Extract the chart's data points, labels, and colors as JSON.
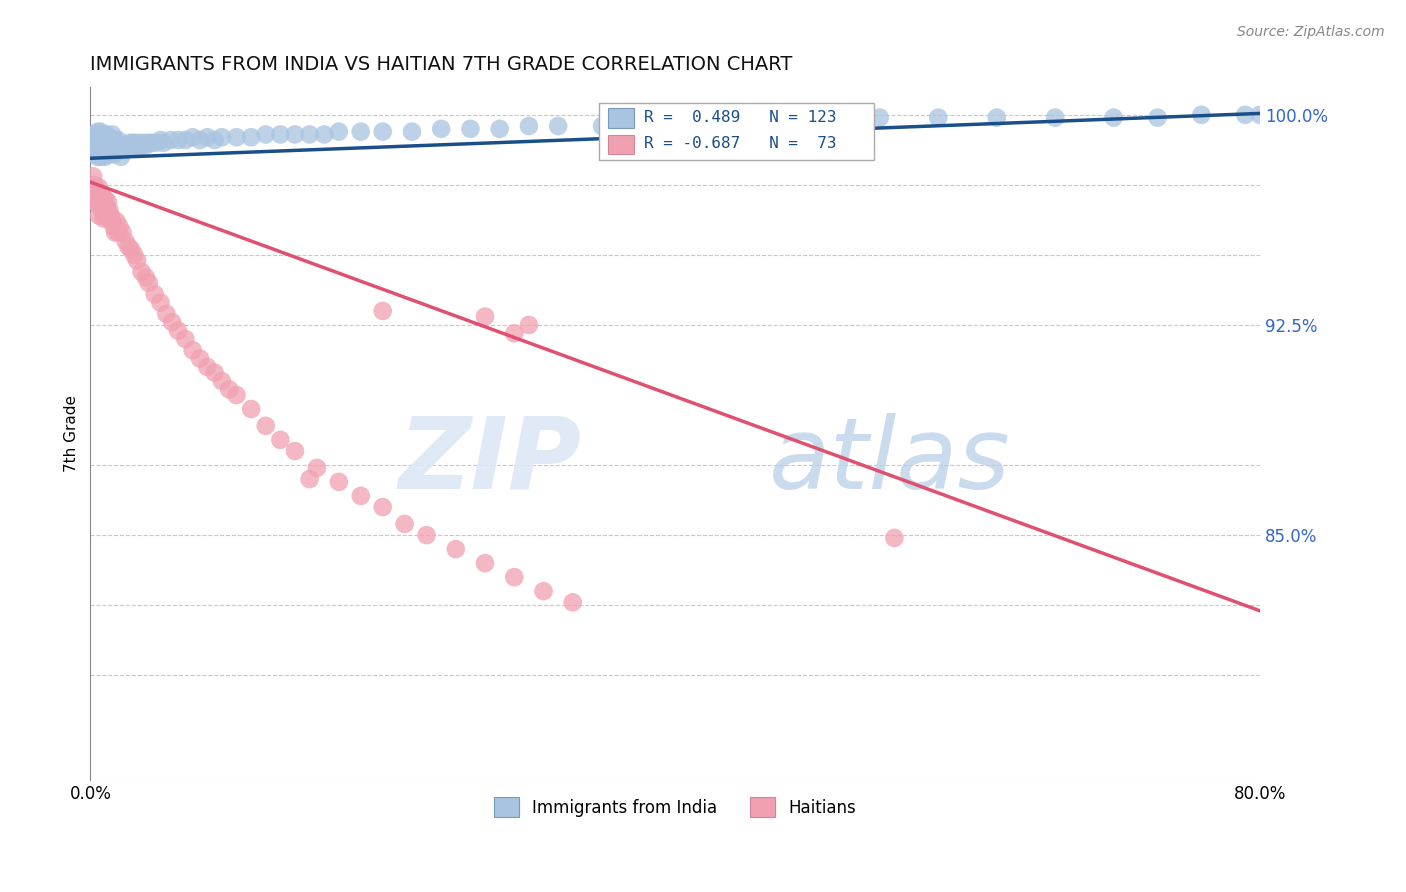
{
  "title": "IMMIGRANTS FROM INDIA VS HAITIAN 7TH GRADE CORRELATION CHART",
  "source": "Source: ZipAtlas.com",
  "ylabel_label": "7th Grade",
  "x_min": 0.0,
  "x_max": 0.8,
  "y_min": 0.7625,
  "y_max": 1.01,
  "india_R": 0.489,
  "india_N": 123,
  "haiti_R": -0.687,
  "haiti_N": 73,
  "india_color": "#a8c4e0",
  "india_line_color": "#1a4f8a",
  "haiti_color": "#f0a0b0",
  "haiti_line_color": "#e05070",
  "background_color": "#ffffff",
  "grid_color": "#c8c8c8",
  "axis_label_color": "#3366cc",
  "title_color": "#111111",
  "india_line_x0": 0.0,
  "india_line_y0": 0.9845,
  "india_line_x1": 0.8,
  "india_line_y1": 1.0005,
  "haiti_line_x0": 0.0,
  "haiti_line_y0": 0.976,
  "haiti_line_x1": 0.8,
  "haiti_line_y1": 0.823,
  "y_grid_lines": [
    0.7625,
    0.8,
    0.825,
    0.85,
    0.875,
    0.925,
    0.95,
    0.975,
    1.0
  ],
  "y_right_ticks": [
    0.7625,
    0.8,
    0.825,
    0.85,
    0.875,
    0.925,
    0.95,
    0.975,
    1.0
  ],
  "y_right_labels": [
    "",
    "",
    "",
    "85.0%",
    "",
    "92.5%",
    "",
    "",
    "100.0%"
  ],
  "india_x": [
    0.002,
    0.002,
    0.003,
    0.003,
    0.003,
    0.004,
    0.004,
    0.004,
    0.005,
    0.005,
    0.005,
    0.005,
    0.006,
    0.006,
    0.006,
    0.007,
    0.007,
    0.007,
    0.007,
    0.008,
    0.008,
    0.008,
    0.009,
    0.009,
    0.009,
    0.01,
    0.01,
    0.01,
    0.011,
    0.011,
    0.011,
    0.012,
    0.012,
    0.013,
    0.013,
    0.014,
    0.014,
    0.015,
    0.015,
    0.015,
    0.016,
    0.016,
    0.017,
    0.017,
    0.018,
    0.018,
    0.019,
    0.019,
    0.02,
    0.021,
    0.021,
    0.022,
    0.023,
    0.024,
    0.025,
    0.026,
    0.027,
    0.028,
    0.029,
    0.03,
    0.031,
    0.032,
    0.034,
    0.035,
    0.037,
    0.038,
    0.04,
    0.042,
    0.045,
    0.048,
    0.05,
    0.055,
    0.06,
    0.065,
    0.07,
    0.075,
    0.08,
    0.085,
    0.09,
    0.1,
    0.11,
    0.12,
    0.13,
    0.14,
    0.15,
    0.16,
    0.17,
    0.185,
    0.2,
    0.22,
    0.24,
    0.26,
    0.28,
    0.3,
    0.32,
    0.35,
    0.38,
    0.41,
    0.44,
    0.47,
    0.5,
    0.54,
    0.58,
    0.62,
    0.66,
    0.7,
    0.73,
    0.76,
    0.79,
    0.8,
    0.81,
    0.82,
    0.83
  ],
  "india_y": [
    0.987,
    0.99,
    0.986,
    0.99,
    0.993,
    0.987,
    0.99,
    0.993,
    0.985,
    0.988,
    0.991,
    0.994,
    0.986,
    0.989,
    0.992,
    0.985,
    0.988,
    0.991,
    0.994,
    0.986,
    0.989,
    0.992,
    0.986,
    0.989,
    0.993,
    0.985,
    0.988,
    0.992,
    0.986,
    0.99,
    0.993,
    0.986,
    0.99,
    0.987,
    0.99,
    0.987,
    0.991,
    0.986,
    0.989,
    0.993,
    0.986,
    0.99,
    0.987,
    0.991,
    0.987,
    0.99,
    0.987,
    0.991,
    0.988,
    0.985,
    0.989,
    0.988,
    0.989,
    0.988,
    0.989,
    0.988,
    0.99,
    0.988,
    0.99,
    0.988,
    0.99,
    0.988,
    0.99,
    0.989,
    0.99,
    0.989,
    0.99,
    0.99,
    0.99,
    0.991,
    0.99,
    0.991,
    0.991,
    0.991,
    0.992,
    0.991,
    0.992,
    0.991,
    0.992,
    0.992,
    0.992,
    0.993,
    0.993,
    0.993,
    0.993,
    0.993,
    0.994,
    0.994,
    0.994,
    0.994,
    0.995,
    0.995,
    0.995,
    0.996,
    0.996,
    0.996,
    0.997,
    0.997,
    0.998,
    0.998,
    0.998,
    0.999,
    0.999,
    0.999,
    0.999,
    0.999,
    0.999,
    1.0,
    1.0,
    1.0,
    1.0,
    1.0,
    1.0
  ],
  "haiti_x": [
    0.002,
    0.002,
    0.003,
    0.003,
    0.004,
    0.004,
    0.005,
    0.005,
    0.006,
    0.006,
    0.006,
    0.007,
    0.007,
    0.008,
    0.008,
    0.009,
    0.009,
    0.01,
    0.01,
    0.011,
    0.012,
    0.012,
    0.013,
    0.014,
    0.015,
    0.016,
    0.017,
    0.018,
    0.019,
    0.02,
    0.022,
    0.024,
    0.026,
    0.028,
    0.03,
    0.032,
    0.035,
    0.038,
    0.04,
    0.044,
    0.048,
    0.052,
    0.056,
    0.06,
    0.065,
    0.07,
    0.075,
    0.08,
    0.085,
    0.09,
    0.095,
    0.1,
    0.11,
    0.12,
    0.13,
    0.14,
    0.155,
    0.17,
    0.185,
    0.2,
    0.215,
    0.23,
    0.25,
    0.27,
    0.29,
    0.31,
    0.33,
    0.27,
    0.29,
    0.2,
    0.55,
    0.3,
    0.15
  ],
  "haiti_y": [
    0.974,
    0.978,
    0.975,
    0.97,
    0.973,
    0.969,
    0.972,
    0.968,
    0.974,
    0.97,
    0.964,
    0.972,
    0.968,
    0.971,
    0.966,
    0.97,
    0.963,
    0.97,
    0.964,
    0.967,
    0.969,
    0.963,
    0.966,
    0.964,
    0.962,
    0.96,
    0.958,
    0.962,
    0.958,
    0.96,
    0.958,
    0.955,
    0.953,
    0.952,
    0.95,
    0.948,
    0.944,
    0.942,
    0.94,
    0.936,
    0.933,
    0.929,
    0.926,
    0.923,
    0.92,
    0.916,
    0.913,
    0.91,
    0.908,
    0.905,
    0.902,
    0.9,
    0.895,
    0.889,
    0.884,
    0.88,
    0.874,
    0.869,
    0.864,
    0.86,
    0.854,
    0.85,
    0.845,
    0.84,
    0.835,
    0.83,
    0.826,
    0.928,
    0.922,
    0.93,
    0.849,
    0.925,
    0.87
  ]
}
